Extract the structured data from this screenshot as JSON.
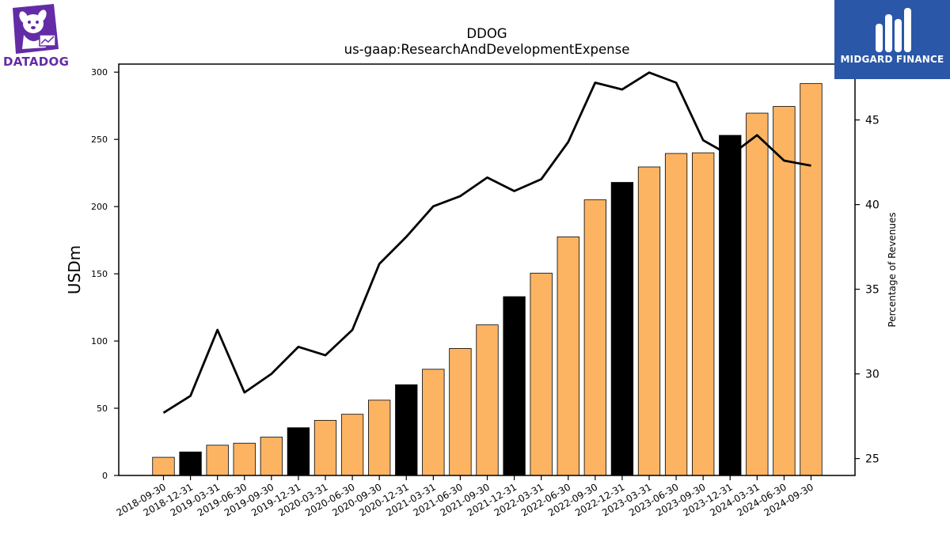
{
  "logos": {
    "left": {
      "text": "DATADOG",
      "icon": "datadog-dog-icon",
      "color": "#632ca6"
    },
    "right": {
      "text": "MIDGARD FINANCE",
      "icon": "midgard-m-icon",
      "background": "#2a57a8"
    }
  },
  "chart_data": {
    "type": "bar",
    "title": "DDOG",
    "subtitle": "us-gaap:ResearchAndDevelopmentExpense",
    "ylabel": "USDm",
    "y2label": "Percentage of Revenues",
    "ylim": [
      0,
      306
    ],
    "y2lim": [
      24,
      48.3
    ],
    "yticks": [
      0,
      50,
      100,
      150,
      200,
      250,
      300
    ],
    "y2ticks": [
      25,
      30,
      35,
      40,
      45
    ],
    "grid": false,
    "categories": [
      "2018-09-30",
      "2018-12-31",
      "2019-03-31",
      "2019-06-30",
      "2019-09-30",
      "2019-12-31",
      "2020-03-31",
      "2020-06-30",
      "2020-09-30",
      "2020-12-31",
      "2021-03-31",
      "2021-06-30",
      "2021-09-30",
      "2021-12-31",
      "2022-03-31",
      "2022-06-30",
      "2022-09-30",
      "2022-12-31",
      "2023-03-31",
      "2023-06-30",
      "2023-09-30",
      "2023-12-31",
      "2024-03-31",
      "2024-06-30",
      "2024-09-30"
    ],
    "series": [
      {
        "type": "bar",
        "axis": "left",
        "values": [
          13.5,
          17.5,
          22.5,
          24,
          28.5,
          35.5,
          41,
          45.5,
          56,
          67.5,
          79,
          94.5,
          112,
          133,
          150.5,
          177.5,
          205,
          218,
          229.5,
          239.5,
          240,
          253,
          269.5,
          274.5,
          291.5
        ]
      },
      {
        "type": "line",
        "axis": "right",
        "values": [
          27.7,
          28.7,
          32.6,
          28.9,
          30.0,
          31.6,
          31.1,
          32.6,
          36.5,
          38.1,
          39.9,
          40.5,
          41.6,
          40.8,
          41.5,
          43.7,
          47.2,
          46.8,
          47.8,
          47.2,
          43.8,
          42.9,
          44.1,
          42.6,
          42.3
        ]
      }
    ],
    "bar_colors": {
      "normal": "#fdb462",
      "year_end": "#000000"
    },
    "line_color": "#000000"
  }
}
